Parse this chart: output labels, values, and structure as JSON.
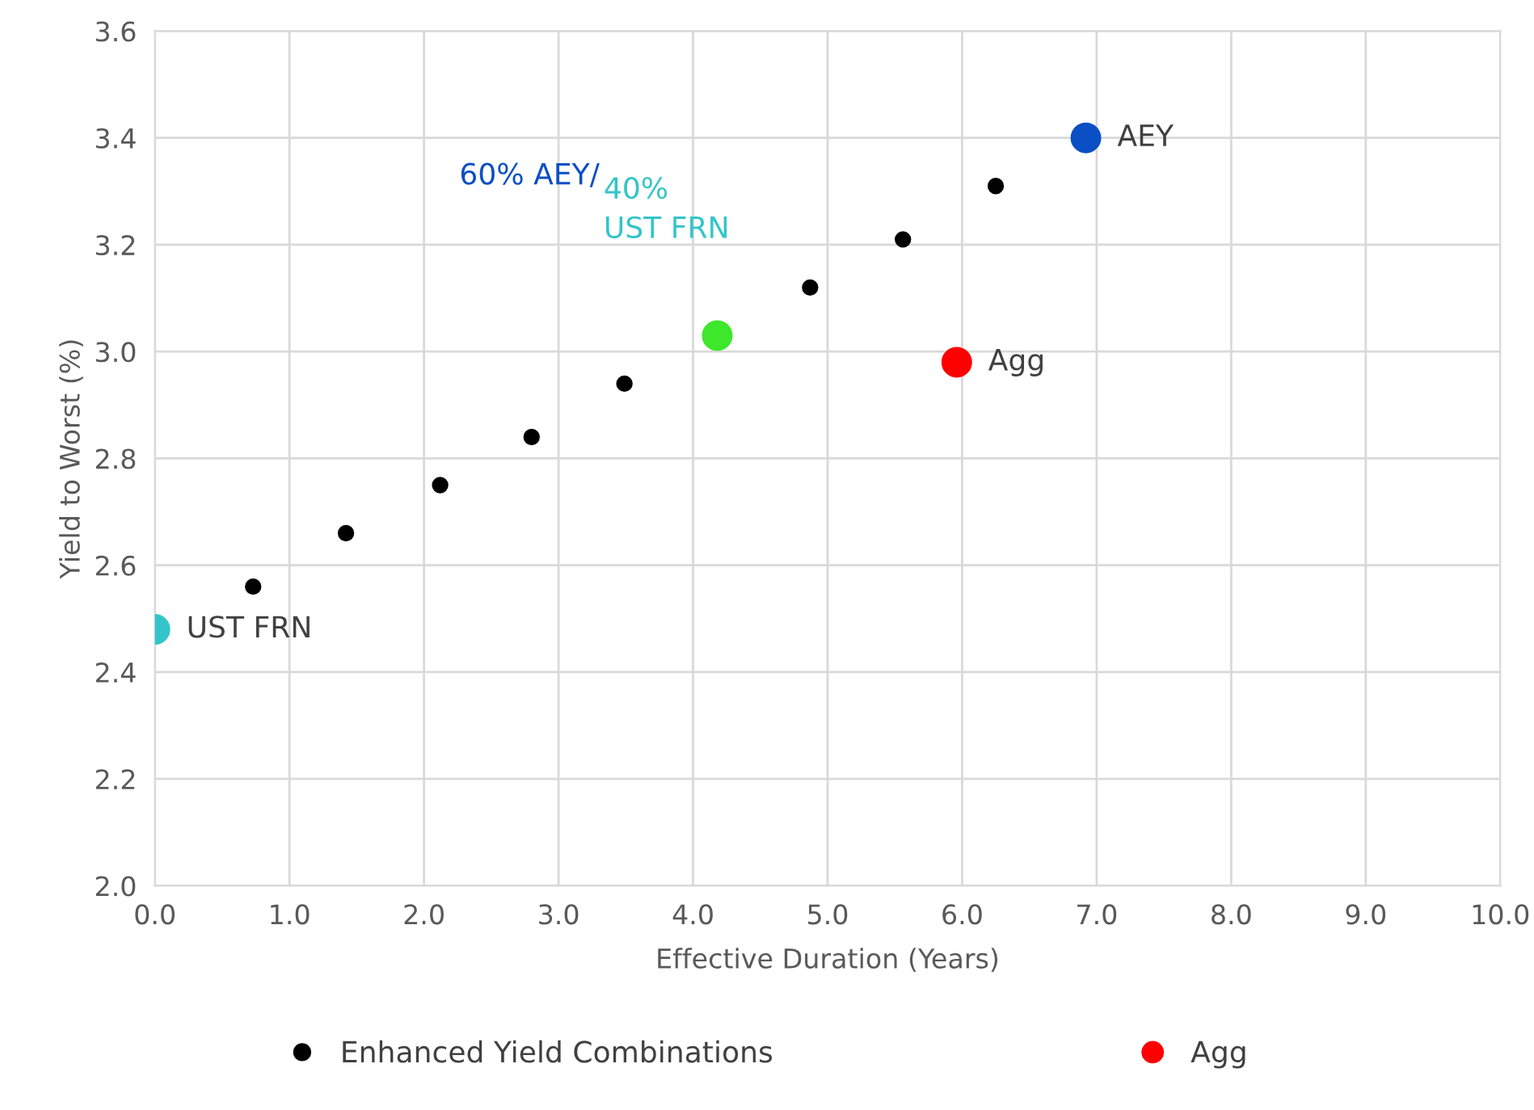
{
  "chart_data": {
    "type": "scatter",
    "xlabel": "Effective Duration (Years)",
    "ylabel": "Yield to Worst (%)",
    "xlim": [
      0,
      10
    ],
    "ylim": [
      2.0,
      3.6
    ],
    "xticks": [
      {
        "value": 0,
        "label": "0.0"
      },
      {
        "value": 1,
        "label": "1.0"
      },
      {
        "value": 2,
        "label": "2.0"
      },
      {
        "value": 3,
        "label": "3.0"
      },
      {
        "value": 4,
        "label": "4.0"
      },
      {
        "value": 5,
        "label": "5.0"
      },
      {
        "value": 6,
        "label": "6.0"
      },
      {
        "value": 7,
        "label": "7.0"
      },
      {
        "value": 8,
        "label": "8.0"
      },
      {
        "value": 9,
        "label": "9.0"
      },
      {
        "value": 10,
        "label": "10.0"
      }
    ],
    "yticks": [
      {
        "value": 2.0,
        "label": "2.0"
      },
      {
        "value": 2.2,
        "label": "2.2"
      },
      {
        "value": 2.4,
        "label": "2.4"
      },
      {
        "value": 2.6,
        "label": "2.6"
      },
      {
        "value": 2.8,
        "label": "2.8"
      },
      {
        "value": 3.0,
        "label": "3.0"
      },
      {
        "value": 3.2,
        "label": "3.2"
      },
      {
        "value": 3.4,
        "label": "3.4"
      },
      {
        "value": 3.6,
        "label": "3.6"
      }
    ],
    "grid": true,
    "legend": "bottom",
    "marker": "circle",
    "series": [
      {
        "name": "Enhanced Yield Combinations",
        "color": "#000000",
        "x": [
          0.73,
          1.42,
          2.12,
          2.8,
          3.49,
          4.87,
          5.56,
          6.25
        ],
        "values": [
          2.56,
          2.66,
          2.75,
          2.84,
          2.94,
          3.12,
          3.21,
          3.31
        ]
      },
      {
        "name": "Agg",
        "color": "#ff0000",
        "x": [
          5.96
        ],
        "values": [
          2.98
        ]
      },
      {
        "name": "AEY",
        "color": "#0b4fc4",
        "x": [
          6.92
        ],
        "values": [
          3.4
        ]
      },
      {
        "name": "UST FRN",
        "color": "#33c5c9",
        "x": [
          0.0
        ],
        "values": [
          2.48
        ]
      },
      {
        "color": "#3ee62c",
        "x": [
          4.18
        ],
        "values": [
          3.03
        ]
      }
    ],
    "annotations": [
      "60% AEY/",
      "40% UST FRN"
    ]
  }
}
